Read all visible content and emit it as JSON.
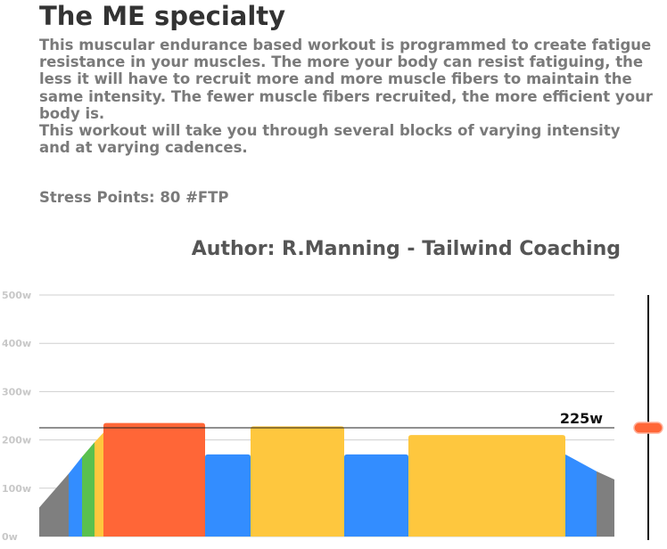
{
  "workout": {
    "title": "The ME specialty",
    "description": [
      "This muscular endurance based workout is programmed to create fatigue resistance in your muscles.  The more your body can resist fatiguing, the less it will have to recruit more and more muscle fibers to maintain the same intensity.  The fewer muscle fibers recruited, the more efficient your body is.",
      "This workout will take you through several blocks of varying intensity and at varying cadences."
    ],
    "stress_points": "Stress Points: 80  #FTP",
    "author": "Author: R.Manning - Tailwind Coaching"
  },
  "chart_data": {
    "type": "area",
    "y_unit": "w",
    "ylim": [
      0,
      500
    ],
    "y_ticks": [
      {
        "value": 0,
        "label": "0w"
      },
      {
        "value": 100,
        "label": "100w"
      },
      {
        "value": 200,
        "label": "200w"
      },
      {
        "value": 300,
        "label": "300w"
      },
      {
        "value": 400,
        "label": "400w"
      },
      {
        "value": 500,
        "label": "500w"
      }
    ],
    "x_total": 645,
    "segments": [
      {
        "kind": "ramp",
        "start": 0,
        "end": 33,
        "from": 60,
        "to": 130,
        "color": "#7f7f7f"
      },
      {
        "kind": "ramp",
        "start": 33,
        "end": 48,
        "from": 130,
        "to": 165,
        "color": "#338dff"
      },
      {
        "kind": "ramp",
        "start": 48,
        "end": 62,
        "from": 165,
        "to": 195,
        "color": "#5ac04e"
      },
      {
        "kind": "ramp",
        "start": 62,
        "end": 72,
        "from": 195,
        "to": 215,
        "color": "#fec73e"
      },
      {
        "kind": "block",
        "start": 72,
        "end": 186,
        "power": 235,
        "color": "#ff6637"
      },
      {
        "kind": "block",
        "start": 186,
        "end": 237,
        "power": 170,
        "color": "#338dff"
      },
      {
        "kind": "block",
        "start": 237,
        "end": 342,
        "power": 228,
        "color": "#fec73e"
      },
      {
        "kind": "block",
        "start": 342,
        "end": 414,
        "power": 170,
        "color": "#338dff"
      },
      {
        "kind": "block",
        "start": 414,
        "end": 590,
        "power": 210,
        "color": "#fec73e"
      },
      {
        "kind": "ramp",
        "start": 590,
        "end": 625,
        "from": 170,
        "to": 135,
        "color": "#338dff"
      },
      {
        "kind": "ramp",
        "start": 625,
        "end": 645,
        "from": 135,
        "to": 118,
        "color": "#7f7f7f"
      }
    ],
    "ftp": {
      "value": 225,
      "label": "225w"
    },
    "slider_value": 225
  }
}
